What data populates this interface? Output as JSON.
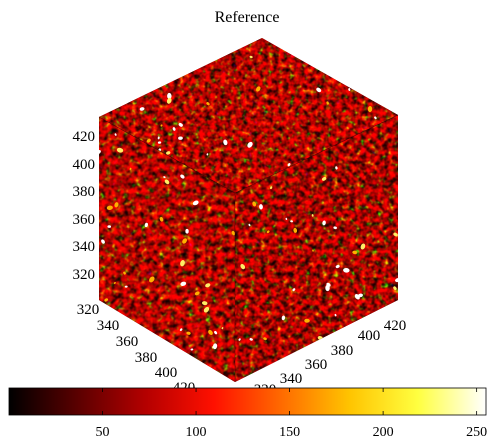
{
  "chart_data": {
    "type": "heatmap",
    "title": "Reference",
    "colormap": "hot",
    "z_ticks": [
      "320",
      "340",
      "360",
      "380",
      "400",
      "420"
    ],
    "x_ticks": [
      "320",
      "340",
      "360",
      "380",
      "400",
      "420"
    ],
    "y_ticks": [
      "320",
      "340",
      "360",
      "380",
      "400",
      "420"
    ],
    "colorbar": {
      "range": [
        0,
        255
      ],
      "ticks": [
        "50",
        "100",
        "150",
        "200",
        "250"
      ],
      "colors": [
        "#000000",
        "#5a0000",
        "#b40000",
        "#ff1000",
        "#ff6a00",
        "#ffc400",
        "#ffff40",
        "#ffffff"
      ]
    }
  }
}
